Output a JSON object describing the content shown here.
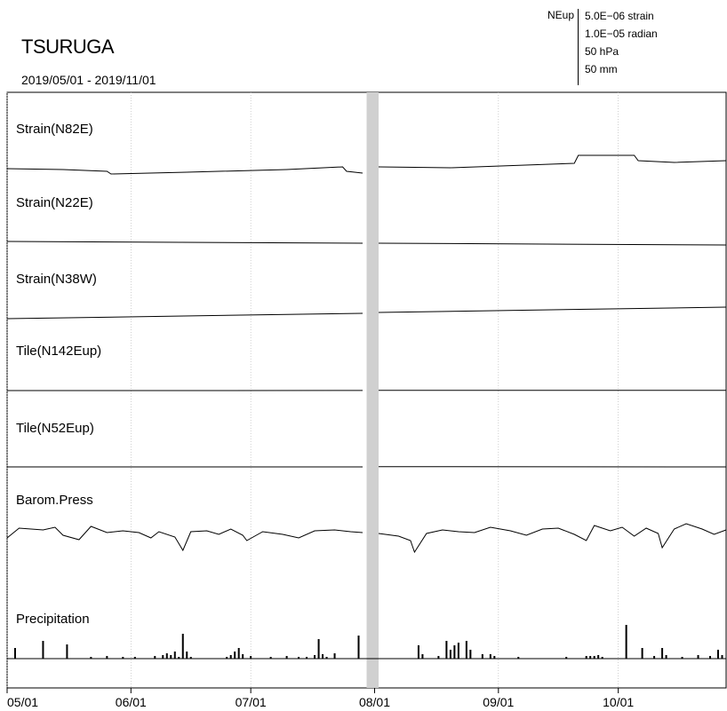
{
  "header": {
    "station": "TSURUGA",
    "period": "2019/05/01 - 2019/11/01",
    "scale_label": "NEup",
    "scale": [
      "5.0E−06 strain",
      "1.0E−05 radian",
      "50 hPa",
      "50 mm"
    ]
  },
  "chart_data": {
    "type": "line",
    "title": "TSURUGA",
    "subtitle": "2019/05/01 - 2019/11/01",
    "x_range": [
      "2019-05-01",
      "2019-10-28"
    ],
    "x_ticks": [
      "05/01",
      "06/01",
      "07/01",
      "08/01",
      "09/01",
      "10/01"
    ],
    "x_tick_dates": [
      "2019-05-01",
      "2019-06-01",
      "2019-07-01",
      "2019-08-01",
      "2019-09-01",
      "2019-10-01"
    ],
    "data_gap": [
      "2019-07-30",
      "2019-08-02"
    ],
    "grid": "vertical dotted at month starts",
    "series": [
      {
        "name": "Strain(N82E)",
        "unit": "strain",
        "points": [
          [
            "2019-05-01",
            0
          ],
          [
            "2019-05-15",
            -1e-07
          ],
          [
            "2019-05-26",
            -3e-07
          ],
          [
            "2019-05-27",
            -6e-07
          ],
          [
            "2019-06-15",
            -4e-07
          ],
          [
            "2019-07-10",
            -1e-07
          ],
          [
            "2019-07-24",
            2e-07
          ],
          [
            "2019-07-25",
            -3e-07
          ],
          [
            "2019-07-29",
            -5e-07
          ],
          [
            "2019-08-02",
            2e-07
          ],
          [
            "2019-08-20",
            1e-07
          ],
          [
            "2019-09-20",
            6e-07
          ],
          [
            "2019-09-21",
            1.5e-06
          ],
          [
            "2019-10-05",
            1.5e-06
          ],
          [
            "2019-10-06",
            9e-07
          ],
          [
            "2019-10-15",
            7e-07
          ],
          [
            "2019-10-28",
            9e-07
          ]
        ]
      },
      {
        "name": "Strain(N22E)",
        "unit": "strain",
        "points": [
          [
            "2019-05-01",
            0
          ],
          [
            "2019-07-29",
            -2e-07
          ],
          [
            "2019-08-02",
            -2e-07
          ],
          [
            "2019-10-28",
            -4e-07
          ]
        ]
      },
      {
        "name": "Strain(N38W)",
        "unit": "strain",
        "points": [
          [
            "2019-05-01",
            0
          ],
          [
            "2019-07-29",
            6e-07
          ],
          [
            "2019-08-02",
            7e-07
          ],
          [
            "2019-10-28",
            1.3e-06
          ]
        ]
      },
      {
        "name": "Tile(N142Eup)",
        "unit": "radian",
        "points": [
          [
            "2019-05-01",
            0
          ],
          [
            "2019-07-29",
            1e-07
          ],
          [
            "2019-08-02",
            3e-07
          ],
          [
            "2019-10-28",
            3e-07
          ]
        ]
      },
      {
        "name": "Tile(N52Eup)",
        "unit": "radian",
        "points": [
          [
            "2019-05-01",
            0
          ],
          [
            "2019-07-29",
            0
          ],
          [
            "2019-08-02",
            3e-07
          ],
          [
            "2019-10-28",
            0
          ]
        ]
      },
      {
        "name": "Barom.Press",
        "unit": "hPa",
        "points": [
          [
            "2019-05-01",
            -6
          ],
          [
            "2019-05-04",
            5
          ],
          [
            "2019-05-10",
            3
          ],
          [
            "2019-05-13",
            6
          ],
          [
            "2019-05-15",
            -3
          ],
          [
            "2019-05-19",
            -8
          ],
          [
            "2019-05-22",
            7
          ],
          [
            "2019-05-26",
            0
          ],
          [
            "2019-05-30",
            2
          ],
          [
            "2019-06-03",
            0
          ],
          [
            "2019-06-06",
            -6
          ],
          [
            "2019-06-08",
            1
          ],
          [
            "2019-06-12",
            -5
          ],
          [
            "2019-06-14",
            -20
          ],
          [
            "2019-06-16",
            1
          ],
          [
            "2019-06-20",
            2
          ],
          [
            "2019-06-23",
            -2
          ],
          [
            "2019-06-26",
            4
          ],
          [
            "2019-06-29",
            -3
          ],
          [
            "2019-06-30",
            -9
          ],
          [
            "2019-07-04",
            1
          ],
          [
            "2019-07-09",
            -2
          ],
          [
            "2019-07-13",
            -6
          ],
          [
            "2019-07-17",
            2
          ],
          [
            "2019-07-22",
            3
          ],
          [
            "2019-07-26",
            1
          ],
          [
            "2019-07-29",
            0
          ],
          [
            "2019-08-02",
            -1
          ],
          [
            "2019-08-07",
            -4
          ],
          [
            "2019-08-10",
            -9
          ],
          [
            "2019-08-11",
            -22
          ],
          [
            "2019-08-14",
            -1
          ],
          [
            "2019-08-18",
            3
          ],
          [
            "2019-08-22",
            1
          ],
          [
            "2019-08-26",
            0
          ],
          [
            "2019-08-30",
            6
          ],
          [
            "2019-09-04",
            2
          ],
          [
            "2019-09-08",
            -3
          ],
          [
            "2019-09-12",
            4
          ],
          [
            "2019-09-16",
            5
          ],
          [
            "2019-09-20",
            -2
          ],
          [
            "2019-09-23",
            -9
          ],
          [
            "2019-09-25",
            8
          ],
          [
            "2019-09-29",
            2
          ],
          [
            "2019-10-02",
            6
          ],
          [
            "2019-10-05",
            -4
          ],
          [
            "2019-10-08",
            5
          ],
          [
            "2019-10-11",
            -1
          ],
          [
            "2019-10-12",
            -17
          ],
          [
            "2019-10-15",
            4
          ],
          [
            "2019-10-18",
            10
          ],
          [
            "2019-10-22",
            4
          ],
          [
            "2019-10-25",
            -2
          ],
          [
            "2019-10-28",
            3
          ]
        ]
      },
      {
        "name": "Precipitation",
        "unit": "mm",
        "type": "bar",
        "points": [
          [
            "2019-05-03",
            12
          ],
          [
            "2019-05-10",
            20
          ],
          [
            "2019-05-16",
            16
          ],
          [
            "2019-05-22",
            2
          ],
          [
            "2019-05-26",
            3
          ],
          [
            "2019-05-30",
            2
          ],
          [
            "2019-06-02",
            2
          ],
          [
            "2019-06-07",
            3
          ],
          [
            "2019-06-09",
            4
          ],
          [
            "2019-06-10",
            6
          ],
          [
            "2019-06-11",
            4
          ],
          [
            "2019-06-12",
            8
          ],
          [
            "2019-06-13",
            2
          ],
          [
            "2019-06-14",
            28
          ],
          [
            "2019-06-15",
            8
          ],
          [
            "2019-06-16",
            2
          ],
          [
            "2019-06-25",
            2
          ],
          [
            "2019-06-26",
            4
          ],
          [
            "2019-06-27",
            8
          ],
          [
            "2019-06-28",
            12
          ],
          [
            "2019-06-29",
            5
          ],
          [
            "2019-07-01",
            3
          ],
          [
            "2019-07-06",
            2
          ],
          [
            "2019-07-10",
            3
          ],
          [
            "2019-07-13",
            2
          ],
          [
            "2019-07-15",
            2
          ],
          [
            "2019-07-17",
            4
          ],
          [
            "2019-07-18",
            22
          ],
          [
            "2019-07-19",
            5
          ],
          [
            "2019-07-20",
            2
          ],
          [
            "2019-07-22",
            6
          ],
          [
            "2019-07-28",
            26
          ],
          [
            "2019-08-12",
            15
          ],
          [
            "2019-08-13",
            5
          ],
          [
            "2019-08-17",
            3
          ],
          [
            "2019-08-19",
            20
          ],
          [
            "2019-08-20",
            10
          ],
          [
            "2019-08-21",
            15
          ],
          [
            "2019-08-22",
            18
          ],
          [
            "2019-08-24",
            20
          ],
          [
            "2019-08-25",
            10
          ],
          [
            "2019-08-28",
            5
          ],
          [
            "2019-08-30",
            5
          ],
          [
            "2019-08-31",
            3
          ],
          [
            "2019-09-06",
            2
          ],
          [
            "2019-09-18",
            2
          ],
          [
            "2019-09-23",
            3
          ],
          [
            "2019-09-24",
            3
          ],
          [
            "2019-09-25",
            3
          ],
          [
            "2019-09-26",
            4
          ],
          [
            "2019-09-27",
            2
          ],
          [
            "2019-10-03",
            38
          ],
          [
            "2019-10-07",
            12
          ],
          [
            "2019-10-10",
            3
          ],
          [
            "2019-10-12",
            12
          ],
          [
            "2019-10-13",
            4
          ],
          [
            "2019-10-17",
            2
          ],
          [
            "2019-10-21",
            4
          ],
          [
            "2019-10-24",
            3
          ],
          [
            "2019-10-26",
            10
          ],
          [
            "2019-10-27",
            4
          ]
        ]
      }
    ]
  }
}
